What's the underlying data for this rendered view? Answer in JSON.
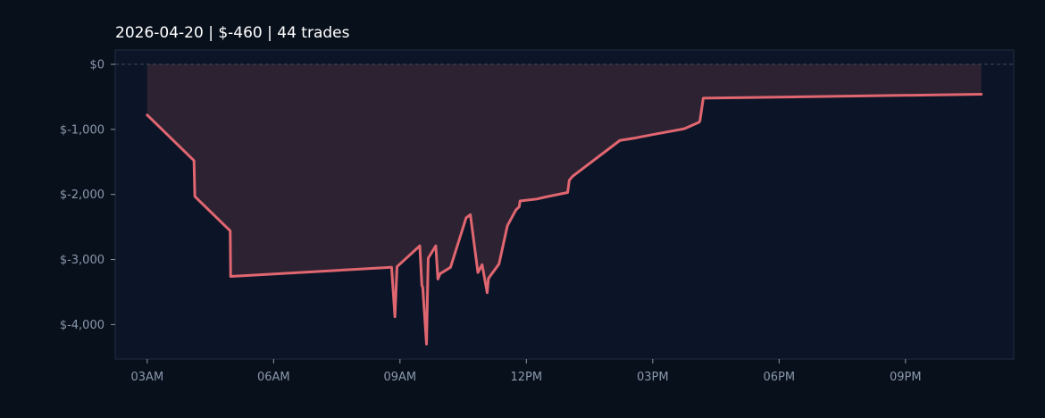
{
  "chart_data": {
    "type": "area",
    "title": "2026-04-20  |  $-460  |  44 trades",
    "xlabel": "",
    "ylabel": "",
    "x_tick_labels": [
      "03AM",
      "06AM",
      "09AM",
      "12PM",
      "03PM",
      "06PM",
      "09PM"
    ],
    "x_tick_values": [
      3,
      6,
      9,
      12,
      15,
      18,
      21
    ],
    "y_tick_labels": [
      "$0",
      "$-1,000",
      "$-2,000",
      "$-3,000",
      "$-4,000"
    ],
    "y_tick_values": [
      0,
      -1000,
      -2000,
      -3000,
      -4000
    ],
    "xlim": [
      2.24,
      23.57
    ],
    "ylim": [
      -4530,
      220
    ],
    "grid": false,
    "zero_line": "dashed",
    "series": [
      {
        "x": [
          3.0,
          4.11,
          4.13,
          4.97,
          4.98,
          8.8,
          8.88,
          8.93,
          9.47,
          9.52,
          9.54,
          9.63,
          9.67,
          9.85,
          9.9,
          9.95,
          10.2,
          10.57,
          10.67,
          10.85,
          10.95,
          11.07,
          11.1,
          11.35,
          11.55,
          11.75,
          11.83,
          11.85,
          12.25,
          12.45,
          12.98,
          13.02,
          13.1,
          14.22,
          14.6,
          15.0,
          15.75,
          16.1,
          16.12,
          16.2,
          22.8
        ],
        "y": [
          -780,
          -1480,
          -2030,
          -2560,
          -3260,
          -3120,
          -3880,
          -3110,
          -2790,
          -3400,
          -3430,
          -4300,
          -2980,
          -2790,
          -3300,
          -3220,
          -3120,
          -2360,
          -2310,
          -3200,
          -3080,
          -3510,
          -3290,
          -3070,
          -2480,
          -2240,
          -2190,
          -2100,
          -2070,
          -2040,
          -1970,
          -1780,
          -1720,
          -1170,
          -1130,
          -1080,
          -990,
          -890,
          -870,
          -520,
          -460
        ]
      }
    ],
    "colors": {
      "line": "#e06670",
      "fill": "#2d2232",
      "plot_bg": "#0c1527",
      "page_bg": "#08101c",
      "axes_border": "#1e2c3f",
      "zero_line": "#3a4a5e",
      "tick_text": "#8a98ab",
      "title_text": "#ffffff"
    }
  }
}
